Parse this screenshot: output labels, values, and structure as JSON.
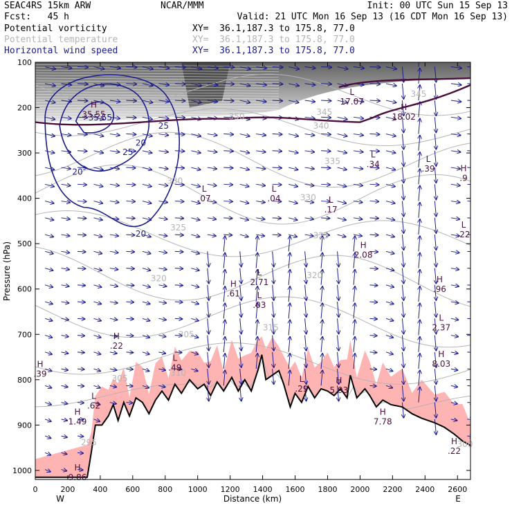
{
  "header": {
    "model": "SEAC4RS 15km ARW",
    "source": "NCAR/MMM",
    "init": "Init: 00 UTC Sun 15 Sep 13",
    "forecast": "Fcst:   45 h",
    "valid": "Valid: 21 UTC Mon 16 Sep 13 (16 CDT Mon 16 Sep 13)",
    "fields": [
      {
        "name": "Potential vorticity",
        "xy": "XY=  36.1,187.3 to 175.8, 77.0",
        "color": "#000000"
      },
      {
        "name": "Potential temperature",
        "xy": "XY=  36.1,187.3 to 175.8, 77.0",
        "color": "#b4b4b4"
      },
      {
        "name": "Horizontal wind speed",
        "xy": "XY=  36.1,187.3 to 175.8, 77.0",
        "color": "#1a1a8c"
      }
    ]
  },
  "colors": {
    "pv_shading": "#8c8c8c",
    "pv_contour": "#4a0f3c",
    "theta_contour": "#b4b4b4",
    "wind_contour": "#1a1a8c",
    "wind_vector": "#1a1a8c",
    "terrain_fill": "#ffb4b4",
    "terrain_line": "#000000",
    "hl_label": "#4a0f3c"
  },
  "chart_data": {
    "type": "cross-section",
    "xlabel": "Distance (km)",
    "ylabel": "Pressure (hPa)",
    "xlim": [
      0,
      2680
    ],
    "ylim": [
      1020,
      100
    ],
    "x_ticks": [
      0,
      200,
      400,
      600,
      800,
      1000,
      1200,
      1400,
      1600,
      1800,
      2000,
      2200,
      2400,
      2600
    ],
    "y_ticks": [
      100,
      200,
      300,
      400,
      500,
      600,
      700,
      800,
      900,
      1000
    ],
    "x_ends": {
      "left": "W",
      "right": "E"
    },
    "terrain": [
      [
        0,
        1015
      ],
      [
        320,
        1015
      ],
      [
        345,
        960
      ],
      [
        370,
        900
      ],
      [
        410,
        900
      ],
      [
        450,
        880
      ],
      [
        480,
        855
      ],
      [
        510,
        890
      ],
      [
        545,
        850
      ],
      [
        580,
        880
      ],
      [
        620,
        840
      ],
      [
        660,
        850
      ],
      [
        700,
        875
      ],
      [
        740,
        845
      ],
      [
        780,
        825
      ],
      [
        820,
        845
      ],
      [
        860,
        810
      ],
      [
        900,
        830
      ],
      [
        950,
        800
      ],
      [
        1000,
        820
      ],
      [
        1040,
        810
      ],
      [
        1080,
        835
      ],
      [
        1120,
        805
      ],
      [
        1160,
        825
      ],
      [
        1210,
        795
      ],
      [
        1250,
        825
      ],
      [
        1290,
        800
      ],
      [
        1330,
        825
      ],
      [
        1370,
        780
      ],
      [
        1395,
        745
      ],
      [
        1420,
        800
      ],
      [
        1460,
        790
      ],
      [
        1500,
        780
      ],
      [
        1530,
        810
      ],
      [
        1570,
        860
      ],
      [
        1600,
        830
      ],
      [
        1640,
        850
      ],
      [
        1680,
        815
      ],
      [
        1720,
        840
      ],
      [
        1760,
        820
      ],
      [
        1800,
        825
      ],
      [
        1840,
        835
      ],
      [
        1880,
        820
      ],
      [
        1920,
        840
      ],
      [
        1940,
        790
      ],
      [
        1980,
        840
      ],
      [
        2030,
        820
      ],
      [
        2060,
        835
      ],
      [
        2100,
        860
      ],
      [
        2140,
        845
      ],
      [
        2190,
        855
      ],
      [
        2260,
        860
      ],
      [
        2320,
        875
      ],
      [
        2380,
        885
      ],
      [
        2460,
        895
      ],
      [
        2520,
        905
      ],
      [
        2580,
        920
      ],
      [
        2630,
        935
      ],
      [
        2680,
        945
      ]
    ],
    "theta_labels": [
      {
        "text": "350",
        "x": 1240,
        "y": 220
      },
      {
        "text": "345",
        "x": 1780,
        "y": 210
      },
      {
        "text": "340",
        "x": 1760,
        "y": 240
      },
      {
        "text": "335",
        "x": 1830,
        "y": 318
      },
      {
        "text": "330",
        "x": 860,
        "y": 362
      },
      {
        "text": "330",
        "x": 1680,
        "y": 398
      },
      {
        "text": "325",
        "x": 880,
        "y": 465
      },
      {
        "text": "325",
        "x": 1760,
        "y": 482
      },
      {
        "text": "320",
        "x": 760,
        "y": 577
      },
      {
        "text": "320",
        "x": 1720,
        "y": 570
      },
      {
        "text": "315",
        "x": 1450,
        "y": 685
      },
      {
        "text": "305",
        "x": 930,
        "y": 700
      },
      {
        "text": "310",
        "x": 880,
        "y": 785
      },
      {
        "text": "305",
        "x": 520,
        "y": 797
      },
      {
        "text": "295",
        "x": 330,
        "y": 938
      },
      {
        "text": "300",
        "x": 2700,
        "y": 942
      },
      {
        "text": "345",
        "x": 2360,
        "y": 170
      }
    ],
    "wind_labels": [
      {
        "text": "20",
        "x": 650,
        "y": 278
      },
      {
        "text": "25",
        "x": 790,
        "y": 240
      },
      {
        "text": "25",
        "x": 570,
        "y": 298
      },
      {
        "text": "20",
        "x": 260,
        "y": 342
      },
      {
        "text": "20",
        "x": 650,
        "y": 478
      },
      {
        "text": "35.55",
        "x": 400,
        "y": 222
      }
    ],
    "extrema": [
      {
        "letter": "H",
        "value": "35.55",
        "x": 360,
        "y": 200
      },
      {
        "letter": "L",
        "value": "17.07",
        "x": 1950,
        "y": 172
      },
      {
        "letter": "H",
        "value": "18.02",
        "x": 2270,
        "y": 205
      },
      {
        "letter": "L",
        "value": ".34",
        "x": 2080,
        "y": 310
      },
      {
        "letter": "L",
        "value": ".39",
        "x": 2420,
        "y": 320
      },
      {
        "letter": "H",
        "value": ".9",
        "x": 2660,
        "y": 340
      },
      {
        "letter": "L",
        "value": ".07",
        "x": 1040,
        "y": 385
      },
      {
        "letter": "L",
        "value": ".04",
        "x": 1470,
        "y": 385
      },
      {
        "letter": "L",
        "value": ".17",
        "x": 1820,
        "y": 410
      },
      {
        "letter": "L",
        "value": ".22",
        "x": 2640,
        "y": 465
      },
      {
        "letter": "H",
        "value": "2.08",
        "x": 2020,
        "y": 510
      },
      {
        "letter": "L",
        "value": "2.71",
        "x": 1380,
        "y": 570
      },
      {
        "letter": "H",
        "value": ".61",
        "x": 1220,
        "y": 595
      },
      {
        "letter": "L",
        "value": ".03",
        "x": 1380,
        "y": 620
      },
      {
        "letter": "H",
        "value": ".96",
        "x": 2490,
        "y": 585
      },
      {
        "letter": "L",
        "value": "2.37",
        "x": 2500,
        "y": 670
      },
      {
        "letter": "H",
        "value": ".22",
        "x": 500,
        "y": 710
      },
      {
        "letter": "H",
        "value": "8.03",
        "x": 2500,
        "y": 750
      },
      {
        "letter": "L",
        "value": ".49",
        "x": 860,
        "y": 758
      },
      {
        "letter": "H",
        "value": ".39",
        "x": 30,
        "y": 772
      },
      {
        "letter": "L",
        "value": ".29",
        "x": 1640,
        "y": 805
      },
      {
        "letter": "H",
        "value": "5.93",
        "x": 1870,
        "y": 808
      },
      {
        "letter": "L",
        "value": ".62",
        "x": 360,
        "y": 842
      },
      {
        "letter": "H",
        "value": "1.49",
        "x": 260,
        "y": 877
      },
      {
        "letter": "H",
        "value": "7.78",
        "x": 2140,
        "y": 877
      },
      {
        "letter": "H",
        "value": ".22",
        "x": 2580,
        "y": 942
      },
      {
        "letter": "H",
        "value": "9.86",
        "x": 260,
        "y": 1000
      }
    ]
  }
}
